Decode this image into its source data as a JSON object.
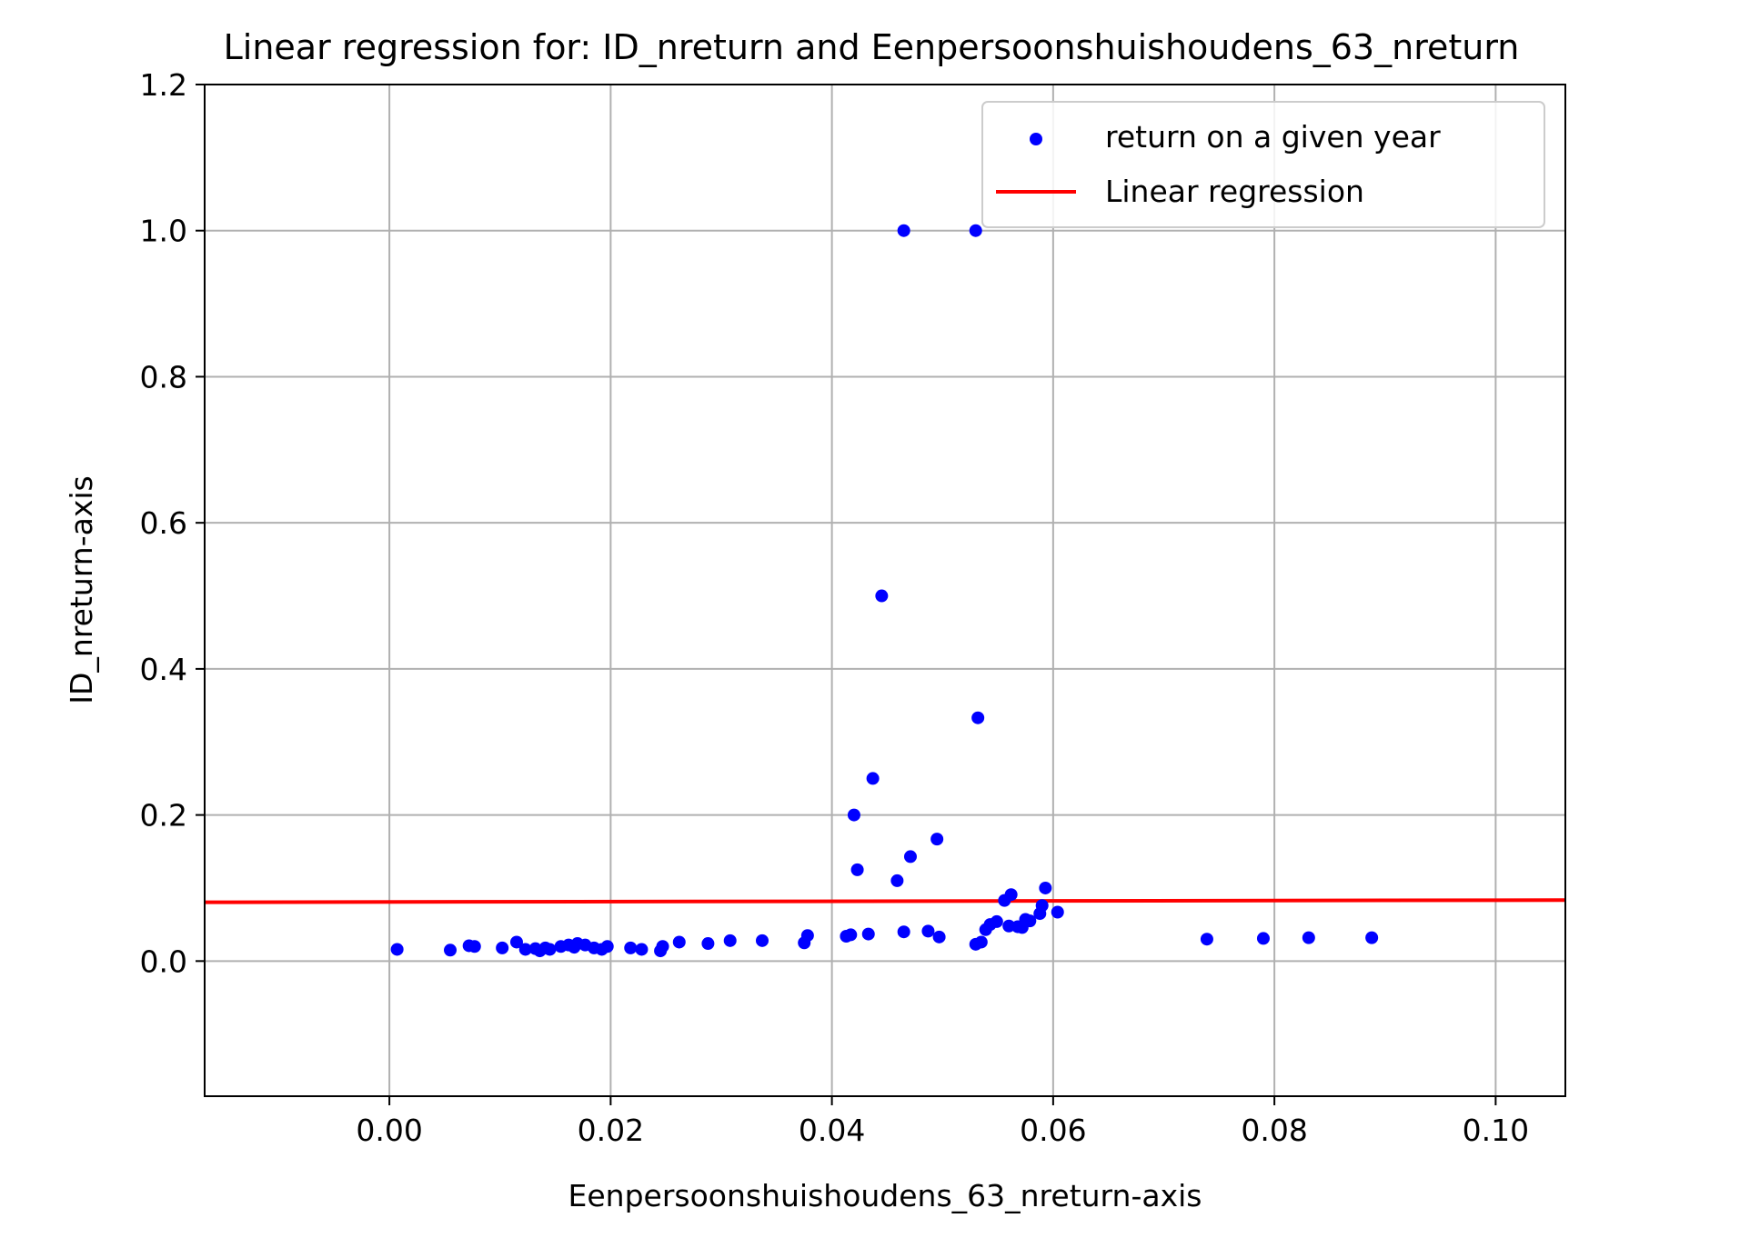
{
  "chart_data": {
    "type": "scatter",
    "title": "Linear regression for: ID_nreturn and Eenpersoonshuishoudens_63_nreturn",
    "xlabel": "Eenpersoonshuishoudens_63_nreturn-axis",
    "ylabel": "ID_nreturn-axis",
    "xlim": [
      -0.0167,
      0.1063
    ],
    "ylim": [
      -0.185,
      1.2
    ],
    "xticks": [
      0.0,
      0.02,
      0.04,
      0.06,
      0.08,
      0.1
    ],
    "xtick_labels": [
      "0.00",
      "0.02",
      "0.04",
      "0.06",
      "0.08",
      "0.10"
    ],
    "yticks": [
      0.0,
      0.2,
      0.4,
      0.6,
      0.8,
      1.0,
      1.2
    ],
    "ytick_labels": [
      "0.0",
      "0.2",
      "0.4",
      "0.6",
      "0.8",
      "1.0",
      "1.2"
    ],
    "grid": true,
    "legend_placement": "top-right",
    "series": [
      {
        "name": "return on a given year",
        "kind": "scatter",
        "color": "#0000ff",
        "points": [
          [
            0.0007,
            0.016
          ],
          [
            0.0055,
            0.015
          ],
          [
            0.0072,
            0.021
          ],
          [
            0.0077,
            0.02
          ],
          [
            0.0102,
            0.018
          ],
          [
            0.0115,
            0.026
          ],
          [
            0.0123,
            0.016
          ],
          [
            0.0132,
            0.017
          ],
          [
            0.0136,
            0.014
          ],
          [
            0.0141,
            0.018
          ],
          [
            0.0145,
            0.016
          ],
          [
            0.0155,
            0.02
          ],
          [
            0.0162,
            0.022
          ],
          [
            0.0167,
            0.019
          ],
          [
            0.017,
            0.024
          ],
          [
            0.0177,
            0.022
          ],
          [
            0.0185,
            0.018
          ],
          [
            0.0192,
            0.016
          ],
          [
            0.0197,
            0.02
          ],
          [
            0.0218,
            0.018
          ],
          [
            0.0228,
            0.016
          ],
          [
            0.0245,
            0.014
          ],
          [
            0.0247,
            0.02
          ],
          [
            0.0262,
            0.026
          ],
          [
            0.0288,
            0.024
          ],
          [
            0.0308,
            0.028
          ],
          [
            0.0337,
            0.028
          ],
          [
            0.0375,
            0.025
          ],
          [
            0.0378,
            0.035
          ],
          [
            0.0413,
            0.034
          ],
          [
            0.0417,
            0.036
          ],
          [
            0.0433,
            0.037
          ],
          [
            0.042,
            0.2
          ],
          [
            0.0423,
            0.125
          ],
          [
            0.0437,
            0.25
          ],
          [
            0.0445,
            0.5
          ],
          [
            0.0459,
            0.11
          ],
          [
            0.0465,
            1.0
          ],
          [
            0.0465,
            0.04
          ],
          [
            0.0471,
            0.143
          ],
          [
            0.0487,
            0.041
          ],
          [
            0.0495,
            0.167
          ],
          [
            0.0497,
            0.033
          ],
          [
            0.053,
            1.0
          ],
          [
            0.0532,
            0.333
          ],
          [
            0.053,
            0.023
          ],
          [
            0.0535,
            0.026
          ],
          [
            0.0539,
            0.043
          ],
          [
            0.0543,
            0.05
          ],
          [
            0.0549,
            0.054
          ],
          [
            0.0556,
            0.083
          ],
          [
            0.056,
            0.048
          ],
          [
            0.0562,
            0.091
          ],
          [
            0.0568,
            0.047
          ],
          [
            0.0572,
            0.046
          ],
          [
            0.0575,
            0.057
          ],
          [
            0.0579,
            0.055
          ],
          [
            0.0588,
            0.065
          ],
          [
            0.059,
            0.076
          ],
          [
            0.0593,
            0.1
          ],
          [
            0.0604,
            0.067
          ],
          [
            0.0739,
            0.03
          ],
          [
            0.079,
            0.031
          ],
          [
            0.0831,
            0.032
          ],
          [
            0.0888,
            0.032
          ]
        ]
      },
      {
        "name": "Linear regression",
        "kind": "line",
        "color": "#ff0000",
        "x": [
          -0.0167,
          0.1063
        ],
        "y": [
          0.0805,
          0.0835
        ]
      }
    ]
  }
}
